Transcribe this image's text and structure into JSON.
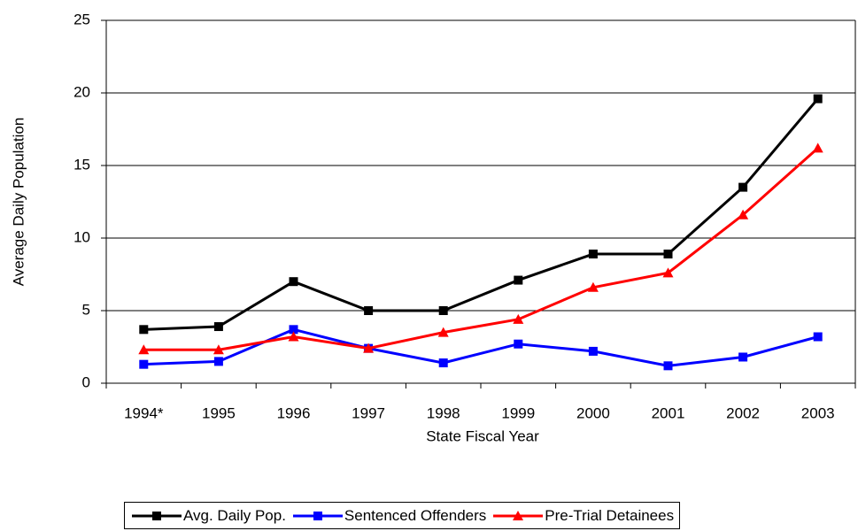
{
  "chart_data": {
    "type": "line",
    "x_label": "State Fiscal Year",
    "y_label": "Average Daily Population",
    "categories": [
      "1994*",
      "1995",
      "1996",
      "1997",
      "1998",
      "1999",
      "2000",
      "2001",
      "2002",
      "2003"
    ],
    "series": [
      {
        "name": "Avg. Daily Pop.",
        "color": "#000000",
        "marker": "square",
        "values": [
          3.7,
          3.9,
          7.0,
          5.0,
          5.0,
          7.1,
          8.9,
          8.9,
          13.5,
          19.6
        ]
      },
      {
        "name": "Sentenced Offenders",
        "color": "#0000ff",
        "marker": "square",
        "values": [
          1.3,
          1.5,
          3.7,
          2.4,
          1.4,
          2.7,
          2.2,
          1.2,
          1.8,
          3.2
        ]
      },
      {
        "name": "Pre-Trial Detainees",
        "color": "#ff0000",
        "marker": "triangle",
        "values": [
          2.3,
          2.3,
          3.2,
          2.4,
          3.5,
          4.4,
          6.6,
          7.6,
          11.6,
          16.2
        ]
      }
    ],
    "ylim": [
      0,
      25
    ],
    "yticks": [
      0,
      5,
      10,
      15,
      20,
      25
    ],
    "grid": true
  }
}
